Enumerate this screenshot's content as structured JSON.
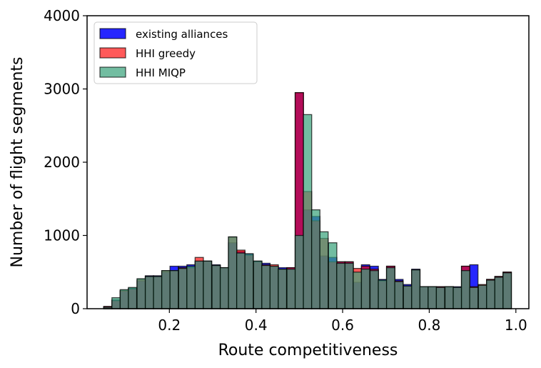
{
  "chart_data": {
    "type": "bar",
    "title": "",
    "xlabel": "Route competitiveness",
    "ylabel": "Number of flight segments",
    "xlim": [
      0.01,
      1.03
    ],
    "ylim": [
      0,
      4000
    ],
    "xticks": [
      "0.2",
      "0.4",
      "0.6",
      "0.8",
      "1.0"
    ],
    "xtick_values": [
      0.2,
      0.4,
      0.6,
      0.8,
      1.0
    ],
    "yticks": [
      "0",
      "1000",
      "2000",
      "3000",
      "4000"
    ],
    "ytick_values": [
      0,
      1000,
      2000,
      3000,
      4000
    ],
    "grid": false,
    "legend_position": "top-left",
    "bin_width": 0.0192,
    "bin_centers": [
      0.058,
      0.077,
      0.096,
      0.115,
      0.135,
      0.154,
      0.173,
      0.192,
      0.211,
      0.231,
      0.25,
      0.269,
      0.288,
      0.308,
      0.327,
      0.346,
      0.365,
      0.384,
      0.404,
      0.423,
      0.442,
      0.461,
      0.481,
      0.5,
      0.519,
      0.538,
      0.557,
      0.577,
      0.596,
      0.615,
      0.634,
      0.653,
      0.673,
      0.692,
      0.711,
      0.73,
      0.75,
      0.769,
      0.788,
      0.807,
      0.826,
      0.846,
      0.865,
      0.884,
      0.903,
      0.923,
      0.942,
      0.961,
      0.98
    ],
    "series": [
      {
        "name": "existing alliances",
        "color": "#0000ff",
        "values": [
          30,
          120,
          240,
          280,
          380,
          450,
          450,
          500,
          580,
          580,
          600,
          650,
          650,
          600,
          560,
          900,
          780,
          750,
          650,
          620,
          580,
          560,
          560,
          2950,
          1350,
          1260,
          720,
          700,
          640,
          640,
          360,
          600,
          580,
          400,
          580,
          400,
          330,
          540,
          300,
          300,
          300,
          300,
          300,
          580,
          600,
          320,
          400,
          440,
          500
        ]
      },
      {
        "name": "HHI greedy",
        "color": "#ff0000",
        "values": [
          30,
          110,
          250,
          270,
          400,
          440,
          440,
          520,
          520,
          560,
          560,
          700,
          650,
          590,
          560,
          980,
          800,
          730,
          640,
          600,
          600,
          540,
          560,
          2950,
          1600,
          1200,
          960,
          640,
          640,
          640,
          550,
          580,
          540,
          380,
          580,
          380,
          310,
          530,
          300,
          300,
          300,
          300,
          290,
          580,
          300,
          330,
          400,
          440,
          500
        ]
      },
      {
        "name": "HHI MIQP",
        "color": "#3ca37d",
        "values": [
          20,
          150,
          260,
          290,
          410,
          440,
          440,
          520,
          520,
          550,
          580,
          650,
          650,
          590,
          560,
          980,
          760,
          750,
          650,
          590,
          580,
          540,
          540,
          1000,
          2650,
          1350,
          1050,
          900,
          620,
          620,
          500,
          540,
          520,
          390,
          560,
          370,
          310,
          530,
          300,
          300,
          290,
          300,
          290,
          520,
          290,
          320,
          390,
          430,
          490
        ]
      }
    ]
  }
}
